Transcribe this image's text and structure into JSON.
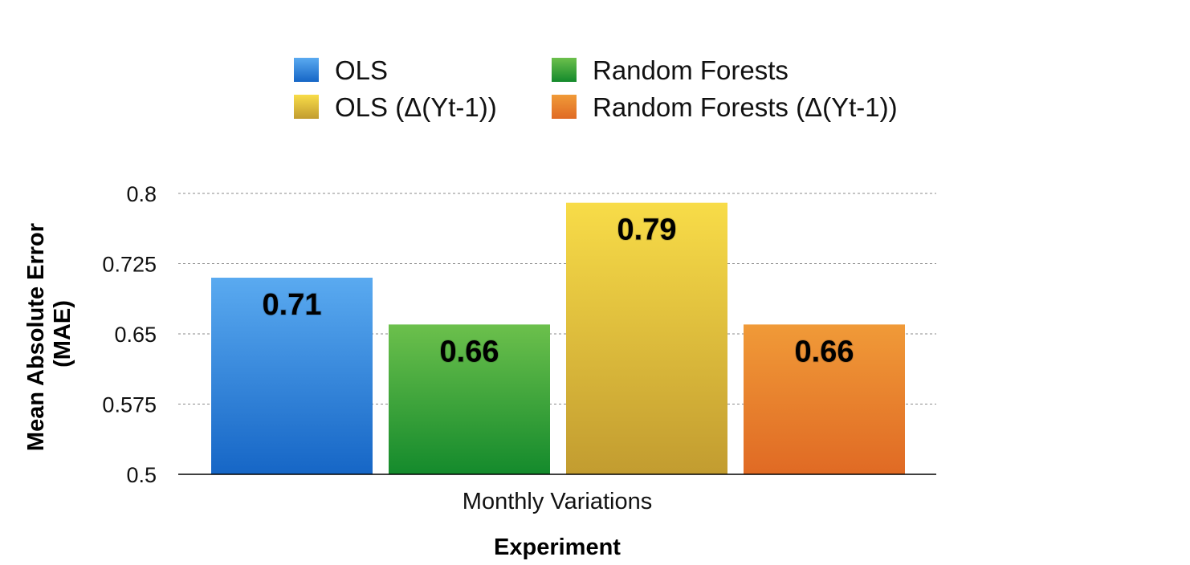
{
  "chart_data": {
    "type": "bar",
    "categories": [
      "Monthly Variations"
    ],
    "series": [
      {
        "name": "OLS",
        "values": [
          0.71
        ],
        "color_top": "#5aaaf0",
        "color_bottom": "#1666c6"
      },
      {
        "name": "Random Forests",
        "values": [
          0.66
        ],
        "color_top": "#6cc04c",
        "color_bottom": "#148a2c"
      },
      {
        "name": "OLS (Δ(Yt-1))",
        "values": [
          0.79
        ],
        "color_top": "#f8dc48",
        "color_bottom": "#c29c30"
      },
      {
        "name": "Random Forests (Δ(Yt-1))",
        "values": [
          0.66
        ],
        "color_top": "#f09a38",
        "color_bottom": "#e06a24"
      }
    ],
    "data_labels": [
      "0.71",
      "0.66",
      "0.79",
      "0.66"
    ],
    "xlabel": "Experiment",
    "ylabel": "Mean Absolute Error (MAE)",
    "ylim": [
      0.5,
      0.8
    ],
    "yticks": [
      0.5,
      0.575,
      0.65,
      0.725,
      0.8
    ],
    "ytick_labels": [
      "0.5",
      "0.575",
      "0.65",
      "0.725",
      "0.8"
    ],
    "grid": true,
    "legend_position": "top"
  }
}
